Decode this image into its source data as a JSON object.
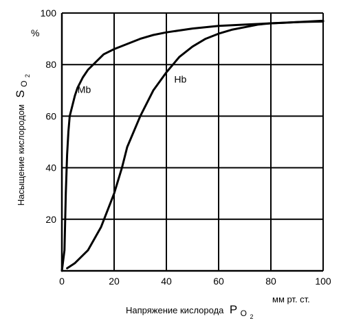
{
  "chart_data": {
    "type": "line",
    "xlim": [
      0,
      100
    ],
    "ylim": [
      0,
      100
    ],
    "x_ticks": [
      0,
      20,
      40,
      60,
      80,
      100
    ],
    "y_ticks": [
      20,
      40,
      60,
      80,
      100
    ],
    "y_unit": "%",
    "xlabel": "Напряжение  кислорода",
    "xlabel_symbol": "P",
    "xlabel_subscript": "O",
    "xlabel_sub_index": "2",
    "x_unit": "мм рт. ст.",
    "ylabel": "Насыщение кислородом",
    "ylabel_symbol": "S",
    "ylabel_subscript": "O",
    "ylabel_sub_index": "2",
    "grid": true,
    "series": [
      {
        "name": "Mb",
        "x": [
          0,
          1,
          1.5,
          2,
          2.5,
          3,
          4,
          5,
          6,
          8,
          10,
          13,
          16,
          20,
          25,
          30,
          35,
          40,
          50,
          60,
          70,
          80,
          90,
          100
        ],
        "y": [
          0,
          8,
          30,
          45,
          54,
          60,
          64,
          68,
          71,
          75,
          78,
          81,
          84,
          86,
          88,
          90,
          91.5,
          92.5,
          94,
          95,
          95.5,
          96,
          96.5,
          97
        ]
      },
      {
        "name": "Hb",
        "x": [
          2,
          5,
          10,
          15,
          20,
          23,
          25,
          30,
          35,
          40,
          45,
          50,
          55,
          60,
          65,
          70,
          75,
          80,
          85,
          90,
          95,
          100
        ],
        "y": [
          1,
          3,
          8,
          17,
          30,
          40,
          48,
          60,
          70,
          77,
          83,
          87,
          90,
          92,
          93.5,
          94.5,
          95.5,
          96,
          96.2,
          96.5,
          96.6,
          96.7
        ]
      }
    ]
  }
}
